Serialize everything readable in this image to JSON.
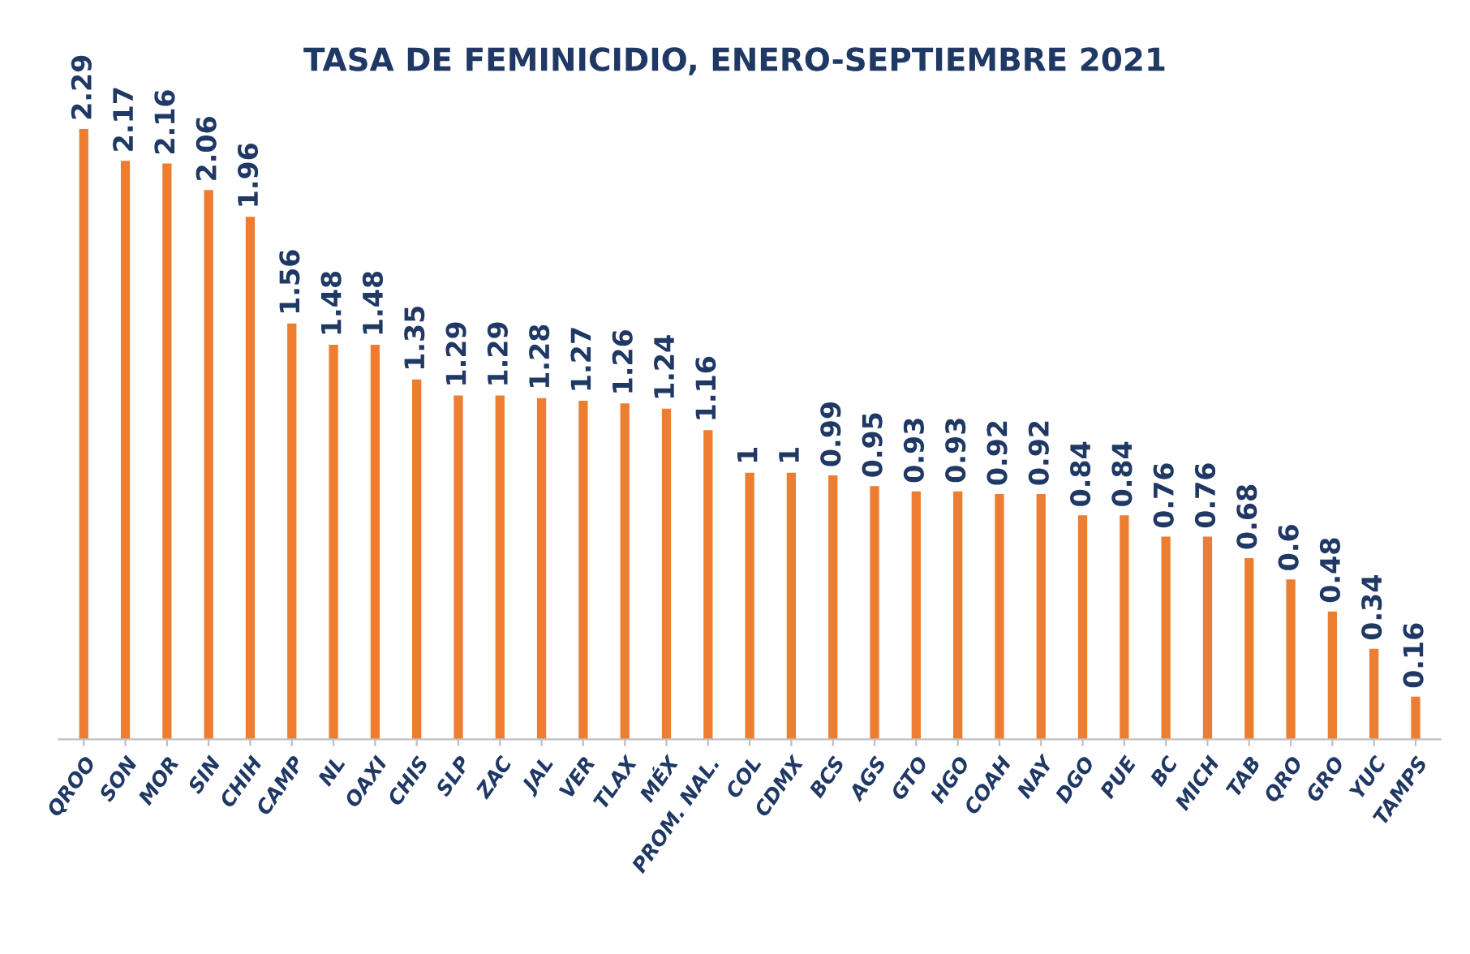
{
  "chart_data": {
    "type": "bar",
    "title": "TASA DE FEMINICIDIO, ENERO-SEPTIEMBRE 2021",
    "categories": [
      "QROO",
      "SON",
      "MOR",
      "SIN",
      "CHIH",
      "CAMP",
      "NL",
      "OAXI",
      "CHIS",
      "SLP",
      "ZAC",
      "JAL",
      "VER",
      "TLAX",
      "MÉX",
      "PROM. NAL.",
      "COL",
      "CDMX",
      "BCS",
      "AGS",
      "GTO",
      "HGO",
      "COAH",
      "NAY",
      "DGO",
      "PUE",
      "BC",
      "MICH",
      "TAB",
      "QRO",
      "GRO",
      "YUC",
      "TAMPS"
    ],
    "values": [
      2.29,
      2.17,
      2.16,
      2.06,
      1.96,
      1.56,
      1.48,
      1.48,
      1.35,
      1.29,
      1.29,
      1.28,
      1.27,
      1.26,
      1.24,
      1.16,
      1,
      1,
      0.99,
      0.95,
      0.93,
      0.93,
      0.92,
      0.92,
      0.84,
      0.84,
      0.76,
      0.76,
      0.68,
      0.6,
      0.48,
      0.34,
      0.16
    ],
    "color": "#ed7d31",
    "data_labels": true,
    "grid": false,
    "legend": false
  }
}
